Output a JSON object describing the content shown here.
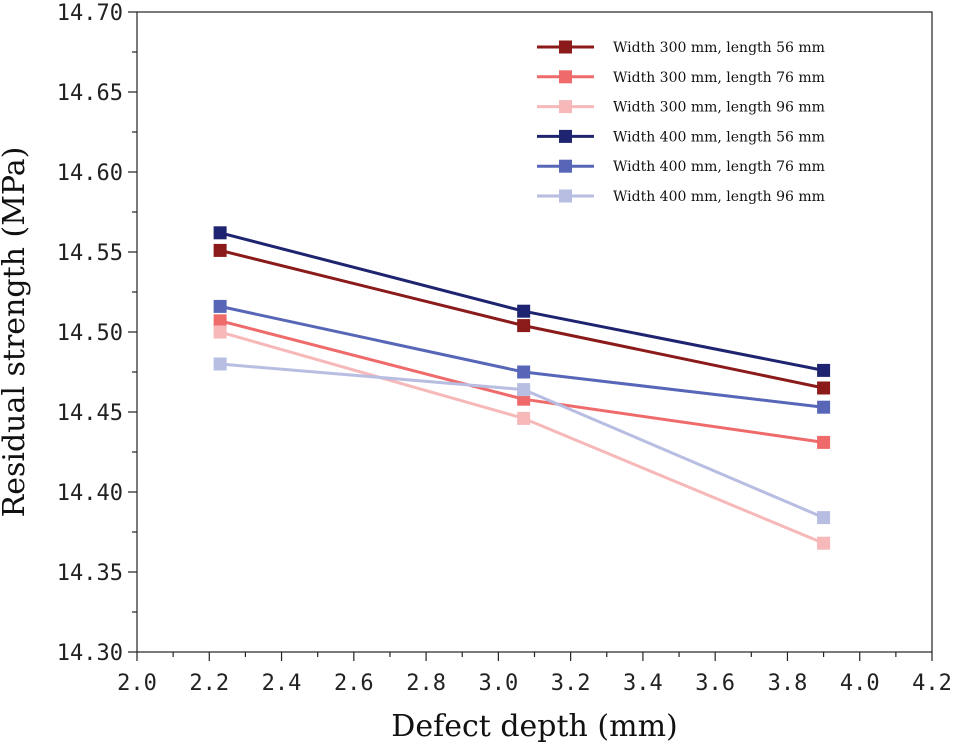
{
  "chart_data": {
    "type": "line",
    "title": "",
    "xlabel": "Defect depth (mm)",
    "ylabel": "Residual strength (MPa)",
    "xlim": [
      2.0,
      4.2
    ],
    "ylim": [
      14.3,
      14.7
    ],
    "x_ticks": [
      "2.0",
      "2.2",
      "2.4",
      "2.6",
      "2.8",
      "3.0",
      "3.2",
      "3.4",
      "3.6",
      "3.8",
      "4.0",
      "4.2"
    ],
    "y_ticks": [
      "14.30",
      "14.35",
      "14.40",
      "14.45",
      "14.50",
      "14.55",
      "14.60",
      "14.65",
      "14.70"
    ],
    "x": [
      2.23,
      3.07,
      3.9
    ],
    "legend_position": "top-right",
    "grid": false,
    "series": [
      {
        "name": "Width 300 mm, length 56 mm",
        "color": "#8b1a1a",
        "values": [
          14.551,
          14.504,
          14.465
        ]
      },
      {
        "name": "Width 300 mm, length 76 mm",
        "color": "#ef6b6b",
        "values": [
          14.507,
          14.458,
          14.431
        ]
      },
      {
        "name": "Width 300 mm, length 96 mm",
        "color": "#f6b8b8",
        "values": [
          14.5,
          14.446,
          14.368
        ]
      },
      {
        "name": "Width 400 mm, length 56 mm",
        "color": "#1f2470",
        "values": [
          14.562,
          14.513,
          14.476
        ]
      },
      {
        "name": "Width 400 mm, length 76 mm",
        "color": "#5866b8",
        "values": [
          14.516,
          14.475,
          14.453
        ]
      },
      {
        "name": "Width 400 mm, length 96 mm",
        "color": "#b8bde2",
        "values": [
          14.48,
          14.464,
          14.384
        ]
      }
    ]
  }
}
